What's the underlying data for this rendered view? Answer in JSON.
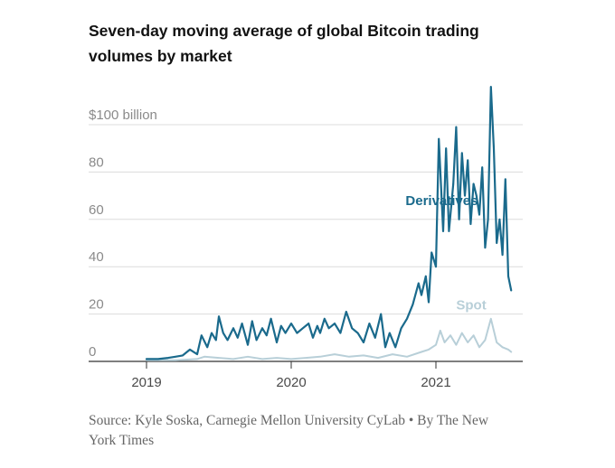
{
  "title": "Seven-day moving average of global Bitcoin trading volumes by market",
  "source": "Source: Kyle Soska, Carnegie Mellon University CyLab • By The New York Times",
  "colors": {
    "derivatives": "#1a6a8c",
    "spot": "#b8cfd8",
    "grid": "#dcdcdc",
    "axis": "#333333"
  },
  "chart_data": {
    "type": "line",
    "title": "Seven-day moving average of global Bitcoin trading volumes by market",
    "unit": "$ billion",
    "ylim": [
      0,
      100
    ],
    "y_ticks": [
      {
        "value": 100,
        "label": "$100 billion"
      },
      {
        "value": 80,
        "label": "80"
      },
      {
        "value": 60,
        "label": "60"
      },
      {
        "value": 40,
        "label": "40"
      },
      {
        "value": 20,
        "label": "20"
      },
      {
        "value": 0,
        "label": "0"
      }
    ],
    "x_ticks": [
      {
        "value": 2019,
        "label": "2019"
      },
      {
        "value": 2020,
        "label": "2020"
      },
      {
        "value": 2021,
        "label": "2021"
      }
    ],
    "grid": true,
    "series": [
      {
        "name": "Derivatives",
        "x": [
          2019.0,
          2019.08,
          2019.15,
          2019.2,
          2019.25,
          2019.3,
          2019.35,
          2019.38,
          2019.42,
          2019.45,
          2019.48,
          2019.5,
          2019.53,
          2019.56,
          2019.6,
          2019.63,
          2019.66,
          2019.7,
          2019.73,
          2019.76,
          2019.8,
          2019.83,
          2019.86,
          2019.9,
          2019.93,
          2019.96,
          2020.0,
          2020.04,
          2020.08,
          2020.12,
          2020.15,
          2020.18,
          2020.2,
          2020.23,
          2020.26,
          2020.3,
          2020.34,
          2020.38,
          2020.42,
          2020.46,
          2020.5,
          2020.54,
          2020.58,
          2020.62,
          2020.65,
          2020.68,
          2020.72,
          2020.76,
          2020.8,
          2020.84,
          2020.88,
          2020.9,
          2020.93,
          2020.95,
          2020.97,
          2021.0,
          2021.02,
          2021.05,
          2021.07,
          2021.09,
          2021.12,
          2021.14,
          2021.16,
          2021.18,
          2021.2,
          2021.22,
          2021.24,
          2021.26,
          2021.28,
          2021.3,
          2021.32,
          2021.34,
          2021.36,
          2021.38,
          2021.4,
          2021.42,
          2021.44,
          2021.46,
          2021.48,
          2021.5,
          2021.52
        ],
        "y": [
          1,
          1,
          1.5,
          2,
          2.5,
          5,
          3,
          11,
          6,
          12,
          9,
          19,
          12,
          9,
          14,
          10,
          16,
          7,
          17,
          9,
          14,
          11,
          18,
          8,
          15,
          12,
          16,
          12,
          14,
          16,
          10,
          15,
          12,
          18,
          14,
          16,
          12,
          21,
          14,
          12,
          8,
          16,
          10,
          20,
          6,
          12,
          6,
          14,
          18,
          24,
          33,
          28,
          36,
          25,
          46,
          40,
          94,
          55,
          90,
          55,
          75,
          99,
          60,
          88,
          70,
          85,
          58,
          75,
          70,
          62,
          82,
          48,
          60,
          116,
          90,
          50,
          60,
          45,
          77,
          36,
          30
        ]
      },
      {
        "name": "Spot",
        "x": [
          2019.0,
          2019.2,
          2019.35,
          2019.4,
          2019.5,
          2019.6,
          2019.7,
          2019.8,
          2019.9,
          2020.0,
          2020.1,
          2020.2,
          2020.3,
          2020.4,
          2020.5,
          2020.6,
          2020.7,
          2020.8,
          2020.9,
          2020.95,
          2021.0,
          2021.03,
          2021.06,
          2021.1,
          2021.14,
          2021.18,
          2021.22,
          2021.26,
          2021.3,
          2021.34,
          2021.38,
          2021.42,
          2021.46,
          2021.5,
          2021.52
        ],
        "y": [
          0.5,
          0.5,
          1,
          2,
          1.5,
          1,
          2,
          1,
          1.5,
          1,
          1.5,
          2,
          3,
          2,
          2.5,
          1.5,
          3,
          2,
          4,
          5,
          7,
          13,
          8,
          11,
          7,
          12,
          8,
          11,
          6,
          9,
          18,
          8,
          6,
          5,
          4
        ]
      }
    ]
  }
}
